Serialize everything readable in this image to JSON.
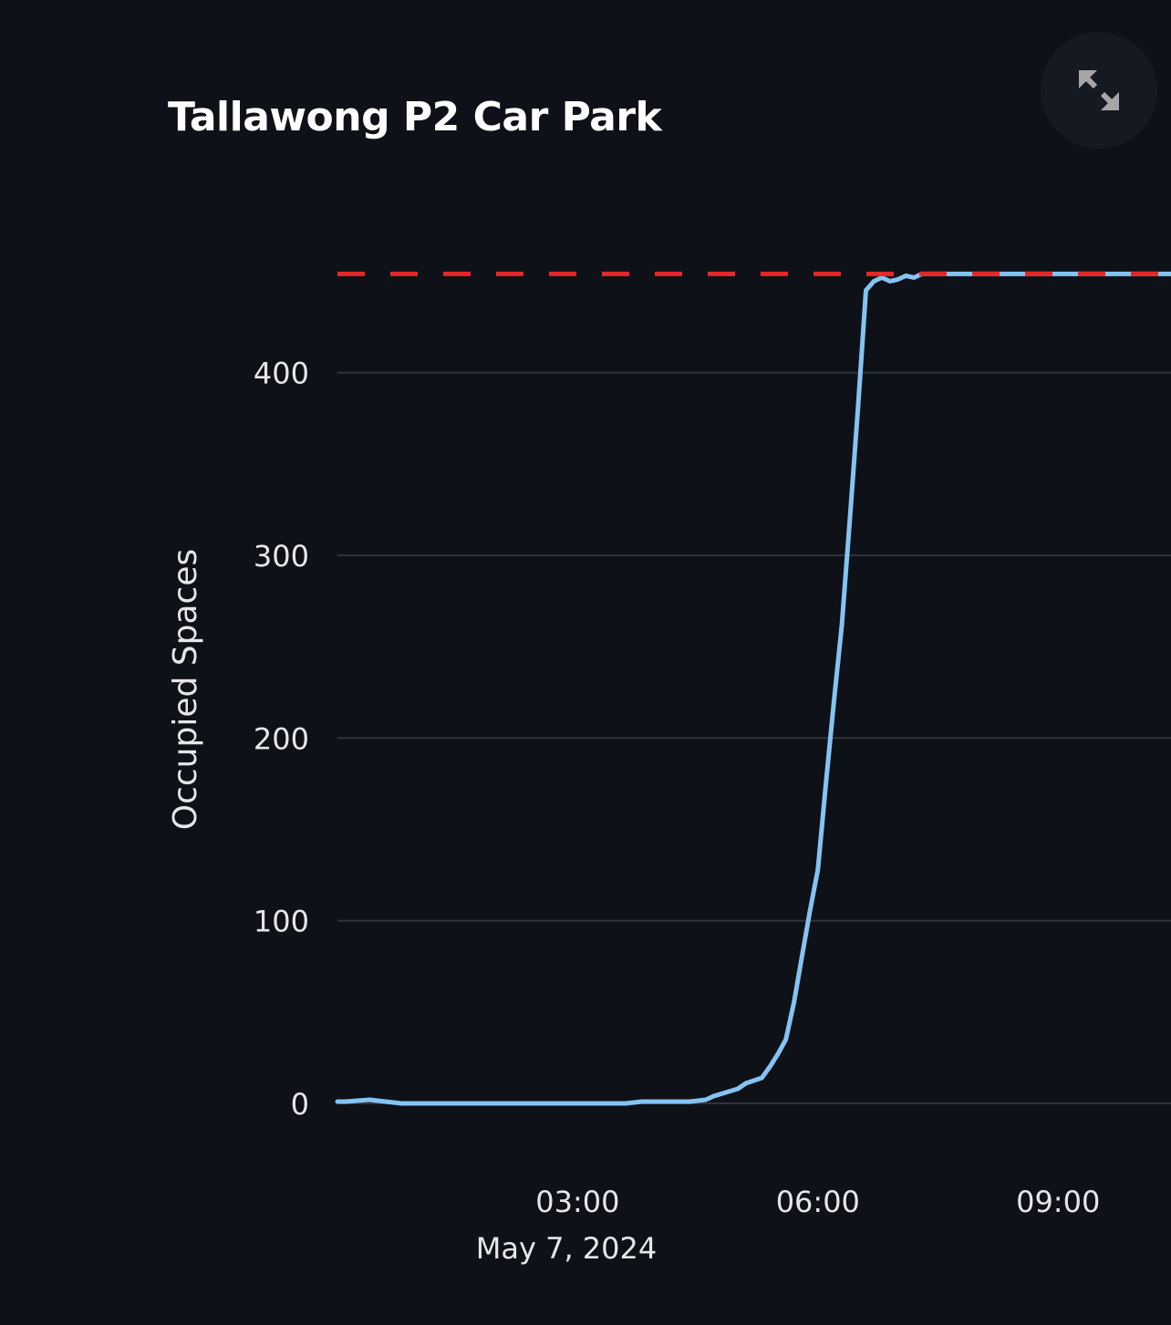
{
  "chart_data": {
    "type": "line",
    "title": "Tallawong P2 Car Park",
    "xlabel": "",
    "ylabel": "Occupied Spaces",
    "x_tick_labels": [
      "03:00",
      "06:00",
      "09:00"
    ],
    "x_date_label": "May 7, 2024",
    "y_ticks": [
      0,
      100,
      200,
      300,
      400
    ],
    "ylim": [
      0,
      500
    ],
    "xlim": [
      "00:00",
      "10:33"
    ],
    "grid": true,
    "legend": "none",
    "capacity_line": {
      "value": 454,
      "color": "#e3282a",
      "style": "dashed"
    },
    "series": [
      {
        "color": "#84c4f2",
        "x": [
          "00:00",
          "00:06",
          "00:24",
          "00:36",
          "00:48",
          "01:30",
          "02:30",
          "03:30",
          "03:36",
          "03:48",
          "04:24",
          "04:36",
          "04:42",
          "05:00",
          "05:06",
          "05:18",
          "05:24",
          "05:30",
          "05:36",
          "05:42",
          "05:48",
          "05:54",
          "06:00",
          "06:06",
          "06:12",
          "06:18",
          "06:24",
          "06:30",
          "06:36",
          "06:42",
          "06:48",
          "06:54",
          "07:00",
          "07:06",
          "07:12",
          "07:18",
          "07:24",
          "07:30",
          "07:36",
          "08:00",
          "09:00",
          "10:33"
        ],
        "y": [
          1,
          1,
          2,
          1,
          0,
          0,
          0,
          0,
          0,
          1,
          1,
          2,
          4,
          8,
          11,
          14,
          20,
          27,
          35,
          55,
          80,
          105,
          128,
          175,
          220,
          262,
          320,
          380,
          445,
          450,
          452,
          450,
          451,
          453,
          452,
          454,
          454,
          454,
          454,
          454,
          454,
          454
        ]
      }
    ]
  },
  "ui": {
    "fullscreen_icon": "expand-arrows-icon",
    "background": "#0e1118",
    "gridline_color": "#31343c"
  }
}
